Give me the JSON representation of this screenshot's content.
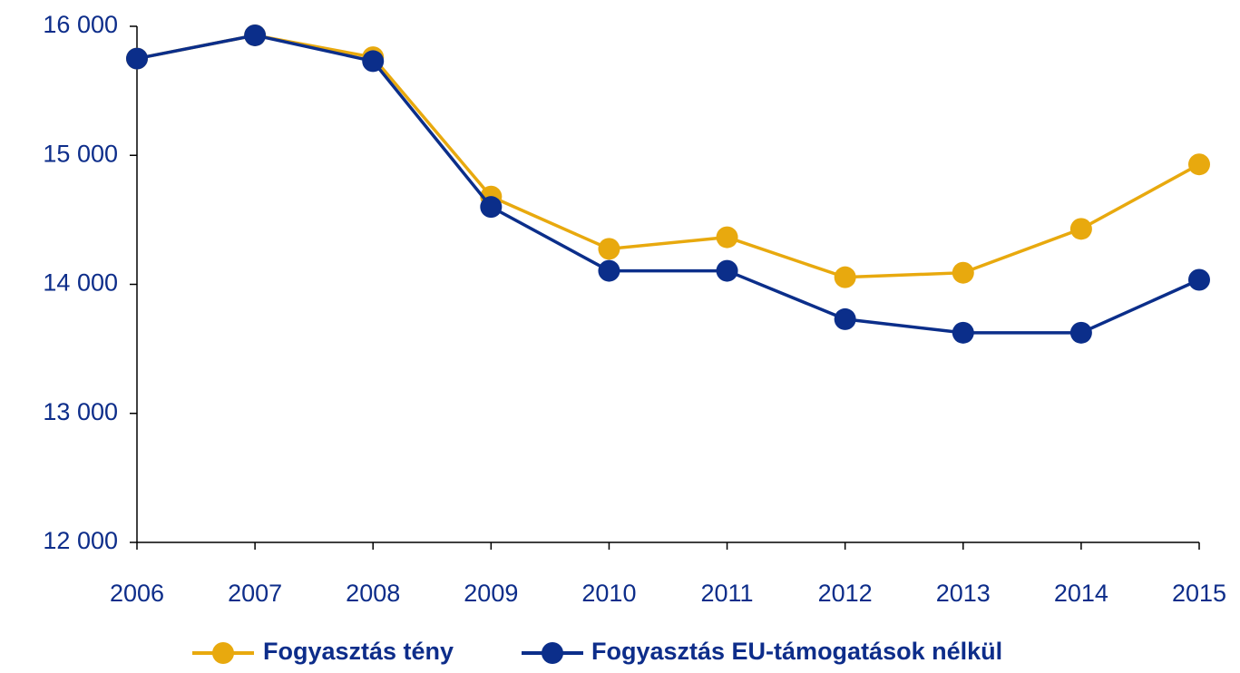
{
  "chart_data": {
    "type": "line",
    "categories": [
      "2006",
      "2007",
      "2008",
      "2009",
      "2010",
      "2011",
      "2012",
      "2013",
      "2014",
      "2015"
    ],
    "series": [
      {
        "name": "Fogyasztás tény",
        "color": "#e8a90e",
        "values": [
          15750,
          15930,
          15760,
          14680,
          14275,
          14365,
          14055,
          14090,
          14430,
          14930
        ]
      },
      {
        "name": "Fogyasztás EU-támogatások nélkül",
        "color": "#0b2e8a",
        "values": [
          15750,
          15930,
          15730,
          14600,
          14105,
          14105,
          13730,
          13625,
          13625,
          14035
        ]
      }
    ],
    "ylim": [
      12000,
      16000
    ],
    "yticks": [
      {
        "value": 12000,
        "label": "12 000"
      },
      {
        "value": 13000,
        "label": "13 000"
      },
      {
        "value": 14000,
        "label": "14 000"
      },
      {
        "value": 15000,
        "label": "15 000"
      },
      {
        "value": 16000,
        "label": "16 000"
      }
    ],
    "grid": false,
    "legend": "bottom"
  }
}
